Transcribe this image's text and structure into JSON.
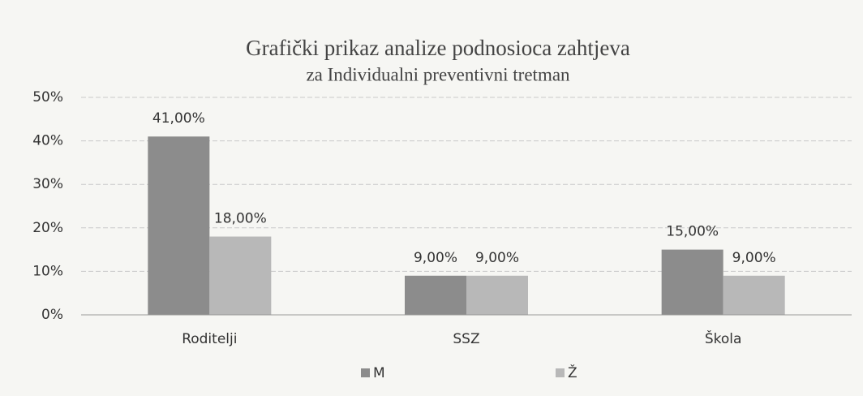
{
  "chart_data": {
    "type": "bar",
    "title": "Grafički prikaz analize podnosioca zahtjeva",
    "subtitle": "za Individualni preventivni tretman",
    "categories": [
      "Roditelji",
      "SSZ",
      "Škola"
    ],
    "series": [
      {
        "name": "M",
        "color": "#8c8c8c",
        "values": [
          41,
          9,
          15
        ],
        "value_labels": [
          "41,00%",
          "9,00%",
          "15,00%"
        ]
      },
      {
        "name": "Ž",
        "color": "#b8b8b8",
        "values": [
          18,
          9,
          9
        ],
        "value_labels": [
          "18,00%",
          "9,00%",
          "9,00%"
        ]
      }
    ],
    "ylim": [
      0,
      50
    ],
    "yticks": [
      {
        "value": 0,
        "label": "0%"
      },
      {
        "value": 10,
        "label": "10%"
      },
      {
        "value": 20,
        "label": "20%"
      },
      {
        "value": 30,
        "label": "30%"
      },
      {
        "value": 40,
        "label": "40%"
      },
      {
        "value": 50,
        "label": "50%"
      }
    ],
    "grid": true,
    "legend": "bottom"
  }
}
